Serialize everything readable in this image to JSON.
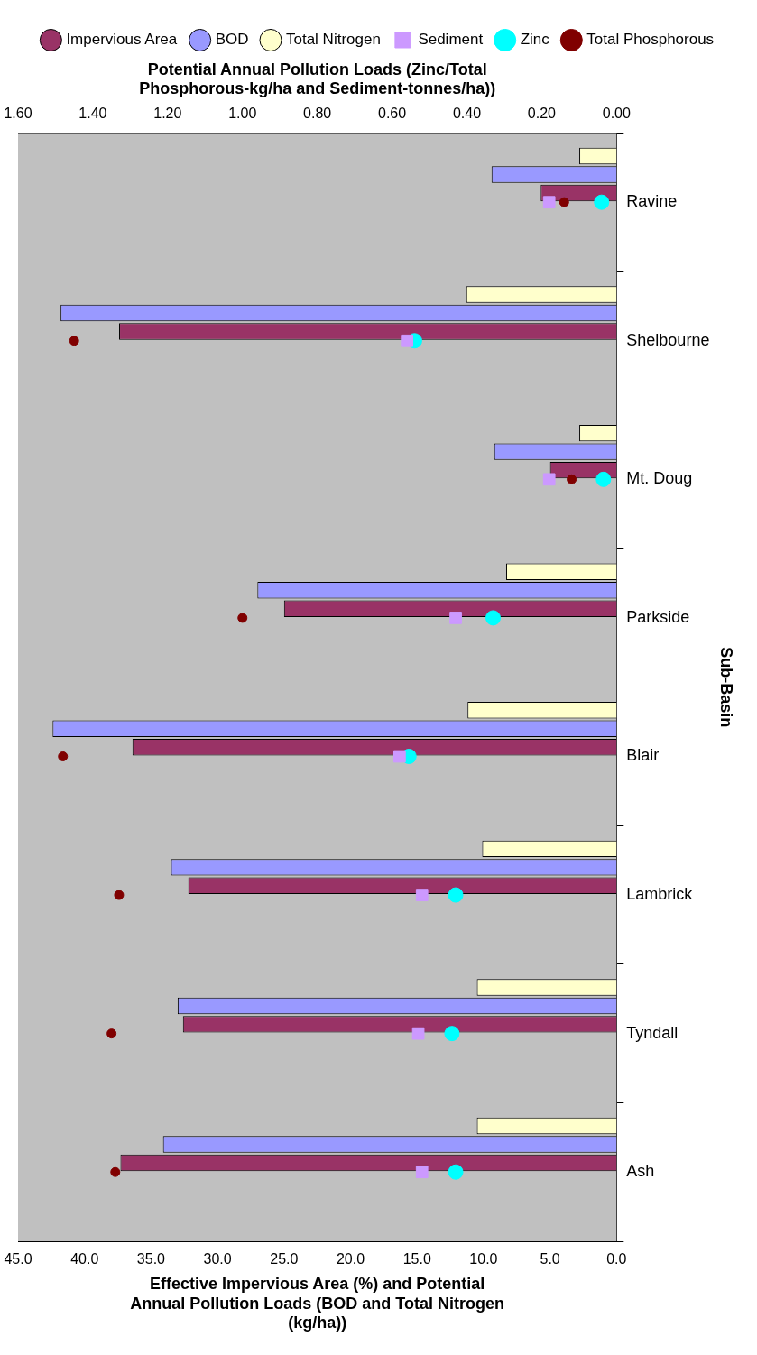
{
  "chart_data": {
    "type": "bar",
    "orientation": "horizontal",
    "categories": [
      "Ravine",
      "Shelbourne",
      "Mt. Doug",
      "Parkside",
      "Blair",
      "Lambrick",
      "Tyndall",
      "Ash"
    ],
    "series": [
      {
        "name": "Impervious Area",
        "color": "#993366",
        "values": [
          5.7,
          37.4,
          5.0,
          25.0,
          36.4,
          32.2,
          32.6,
          37.3
        ]
      },
      {
        "name": "BOD",
        "color": "#9999ff",
        "values": [
          9.4,
          41.8,
          9.2,
          27.0,
          42.4,
          33.5,
          33.0,
          34.1
        ]
      },
      {
        "name": "Total Nitrogen",
        "color": "#ffffcc",
        "values": [
          2.8,
          11.3,
          2.8,
          8.3,
          11.2,
          10.1,
          10.5,
          10.5
        ]
      },
      {
        "name": "Sediment",
        "type": "scatter",
        "axis": "x2",
        "marker": "square",
        "color": "#cc99ff",
        "values": [
          0.18,
          0.56,
          0.18,
          0.43,
          0.58,
          0.52,
          0.53,
          0.52
        ]
      },
      {
        "name": "Zinc",
        "type": "scatter",
        "axis": "x2",
        "marker": "circle",
        "color": "#00ffff",
        "values": [
          0.04,
          0.54,
          0.035,
          0.33,
          0.555,
          0.43,
          0.44,
          0.43
        ]
      },
      {
        "name": "Total Phosphorous",
        "type": "scatter",
        "axis": "x2",
        "marker": "circle",
        "color": "#800000",
        "values": [
          0.14,
          1.45,
          0.12,
          1.0,
          1.48,
          1.33,
          1.35,
          1.34
        ]
      }
    ],
    "xlim": [
      45,
      0
    ],
    "xticks": [
      {
        "value": 45,
        "label": "45.0"
      },
      {
        "value": 40,
        "label": "40.0"
      },
      {
        "value": 35,
        "label": "35.0"
      },
      {
        "value": 30,
        "label": "30.0"
      },
      {
        "value": 25,
        "label": "25.0"
      },
      {
        "value": 20,
        "label": "20.0"
      },
      {
        "value": 15,
        "label": "15.0"
      },
      {
        "value": 10,
        "label": "10.0"
      },
      {
        "value": 5,
        "label": "5.0"
      },
      {
        "value": 0,
        "label": "0.0"
      }
    ],
    "x2lim": [
      1.6,
      0
    ],
    "x2ticks": [
      {
        "value": 1.6,
        "label": "1.60"
      },
      {
        "value": 1.4,
        "label": "1.40"
      },
      {
        "value": 1.2,
        "label": "1.20"
      },
      {
        "value": 1,
        "label": "1.00"
      },
      {
        "value": 0.8,
        "label": "0.80"
      },
      {
        "value": 0.6,
        "label": "0.60"
      },
      {
        "value": 0.4,
        "label": "0.40"
      },
      {
        "value": 0.2,
        "label": "0.20"
      },
      {
        "value": 0,
        "label": "0.00"
      }
    ],
    "xlabel": "Effective Impervious Area (%) and Potential Annual Pollution Loads (BOD and Total Nitrogen (kg/ha))",
    "x2label": "Potential Annual Pollution Loads (Zinc/Total Phosphorous-kg/ha and Sediment-tonnes/ha))",
    "ylabel": "Sub-Basin",
    "legend": "top",
    "grid": false
  }
}
